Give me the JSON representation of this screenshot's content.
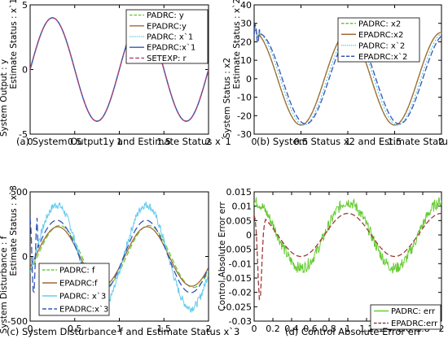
{
  "chart_data": [
    {
      "type": "line",
      "caption": "(a) System Output1y and Estimate Status x`1",
      "ylabel_outer": "System Output : y",
      "ylabel_inner": "Estimate Status : x`1",
      "xlim": [
        0,
        2
      ],
      "ylim": [
        -5,
        5
      ],
      "xticks": [
        "0",
        "0.5",
        "1",
        "1.5",
        "2"
      ],
      "yticks": [
        "-5",
        "0",
        "5"
      ],
      "series": [
        {
          "name": "PADRC: y",
          "color": "#66cc33",
          "dash": "6,3",
          "kind": "sin",
          "amp": 4,
          "phase": 0
        },
        {
          "name": "EPADRC:y",
          "color": "#a06a35",
          "dash": "",
          "kind": "sin",
          "amp": 4,
          "phase": 0
        },
        {
          "name": "PADRC: x`1",
          "color": "#66ccee",
          "dash": "2,2",
          "kind": "sin",
          "amp": 4,
          "phase": 0
        },
        {
          "name": "EPADRC:x`1",
          "color": "#3355bb",
          "dash": "",
          "kind": "sin",
          "amp": 4,
          "phase": 0
        },
        {
          "name": "SETEXP: r",
          "color": "#b0407a",
          "dash": "8,4",
          "kind": "sin",
          "amp": 4,
          "phase": 0
        }
      ]
    },
    {
      "type": "line",
      "caption": "(b) System Status x2 and Estimate Status x`2",
      "ylabel_outer": "System Status : x2",
      "ylabel_inner": "Estimate Status : x`2",
      "xlim": [
        0,
        2
      ],
      "ylim": [
        -30,
        40
      ],
      "xticks": [
        "0",
        "0.5",
        "1",
        "1.5",
        "2"
      ],
      "yticks": [
        "-30",
        "-20",
        "-10",
        "0",
        "10",
        "20",
        "30",
        "40"
      ],
      "series": [
        {
          "name": "PADRC: x2",
          "color": "#66cc33",
          "dash": "6,3",
          "kind": "cos",
          "amp": 25.1,
          "phase": 0
        },
        {
          "name": "EPADRC:x2",
          "color": "#a06a35",
          "dash": "",
          "kind": "cos",
          "amp": 25.1,
          "phase": 0
        },
        {
          "name": "PADRC: x`2",
          "color": "#66ccee",
          "dash": "2,2",
          "kind": "cos",
          "amp": 25.1,
          "phase": 0.03
        },
        {
          "name": "EPADRC:x`2",
          "color": "#3355bb",
          "dash": "7,3",
          "kind": "cos",
          "amp": 24.5,
          "phase": 0.05
        }
      ]
    },
    {
      "type": "line",
      "caption": "(c) System Disturbance f and Estimate Status x`3",
      "ylabel_outer": "System Disturbance : f",
      "ylabel_inner": "Estimate Status : x`3",
      "xlim": [
        0,
        2
      ],
      "ylim": [
        -500,
        500
      ],
      "xticks": [
        "0",
        "0.5",
        "1",
        "1.5",
        "2"
      ],
      "yticks": [
        "-500",
        "0",
        "500"
      ],
      "series": [
        {
          "name": "PADRC: f",
          "color": "#66cc33",
          "dash": "6,3",
          "kind": "dist",
          "amp": 240,
          "phase": 0.08
        },
        {
          "name": "EPADRC:f",
          "color": "#a06a35",
          "dash": "",
          "kind": "dist",
          "amp": 230,
          "phase": 0.06
        },
        {
          "name": "PADRC: x`3",
          "color": "#66ccee",
          "dash": "",
          "kind": "distnoisy",
          "amp": 400,
          "phase": 0.05
        },
        {
          "name": "EPADRC:x`3",
          "color": "#3355bb",
          "dash": "8,4",
          "kind": "dist",
          "amp": 280,
          "phase": 0.05
        }
      ]
    },
    {
      "type": "line",
      "caption": "(d) Control Absolute Error err",
      "ylabel_outer": "Control Absolute Error err",
      "ylabel_inner": "",
      "xlim": [
        0,
        2
      ],
      "ylim": [
        -0.03,
        0.015
      ],
      "xticks": [
        "0",
        "0.2",
        "0.4",
        "0.6",
        "0.8",
        "1",
        "1.2",
        "1.4",
        "1.6",
        "1.8",
        "2"
      ],
      "yticks": [
        "-0.03",
        "-0.025",
        "-0.02",
        "-0.015",
        "-0.01",
        "-0.005",
        "0",
        "0.005",
        "0.01",
        "0.015"
      ],
      "series": [
        {
          "name": "PADRC: err",
          "color": "#66cc33",
          "dash": "",
          "kind": "errnoisy",
          "amp": 0.0115,
          "phase": 0
        },
        {
          "name": "EPADRC:err",
          "color": "#a03a3a",
          "dash": "6,3",
          "kind": "err",
          "amp": 0.0075,
          "phase": 0
        }
      ]
    }
  ]
}
